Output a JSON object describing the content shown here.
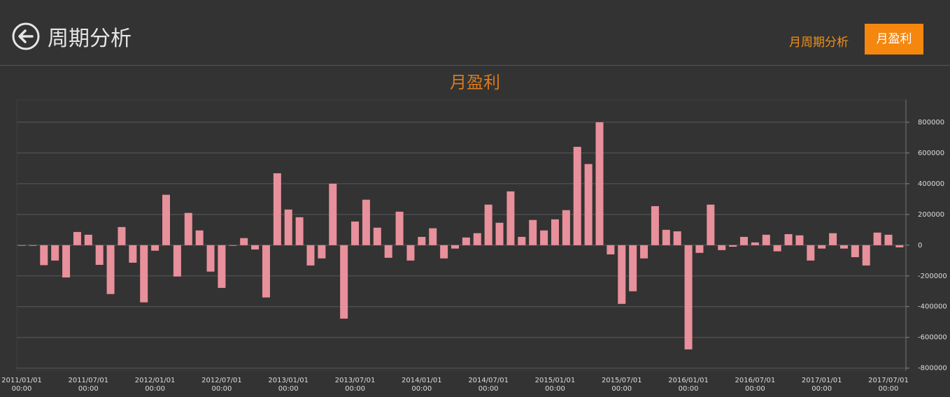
{
  "header": {
    "title": "周期分析",
    "tabs": [
      "月周期分析",
      "月盈利"
    ]
  },
  "chart_data": {
    "type": "bar",
    "title": "月盈利",
    "color": "#e8909b",
    "grid": true,
    "categories": [
      "2011/01/01\n00:00",
      null,
      null,
      null,
      null,
      null,
      "2011/07/01\n00:00",
      null,
      null,
      null,
      null,
      null,
      "2012/01/01\n00:00",
      null,
      null,
      null,
      null,
      null,
      "2012/07/01\n00:00",
      null,
      null,
      null,
      null,
      null,
      "2013/01/01\n00:00",
      null,
      null,
      null,
      null,
      null,
      "2013/07/01\n00:00",
      null,
      null,
      null,
      null,
      null,
      "2014/01/01\n00:00",
      null,
      null,
      null,
      null,
      null,
      "2014/07/01\n00:00",
      null,
      null,
      null,
      null,
      null,
      "2015/01/01\n00:00",
      null,
      null,
      null,
      null,
      null,
      "2015/07/01\n00:00",
      null,
      null,
      null,
      null,
      null,
      "2016/01/01\n00:00",
      null,
      null,
      null,
      null,
      null,
      "2016/07/01\n00:00",
      null,
      null,
      null,
      null,
      null,
      "2017/01/01\n00:00",
      null,
      null,
      null,
      null,
      null,
      "2017/07/01\n00:00",
      null
    ],
    "values": [
      -2000,
      -4000,
      -130000,
      -100000,
      -210000,
      86000,
      68000,
      -128000,
      -318000,
      118000,
      -114000,
      -372000,
      -36000,
      328000,
      -204000,
      210000,
      96000,
      -172000,
      -278000,
      -4000,
      46000,
      -28000,
      -340000,
      468000,
      232000,
      182000,
      -132000,
      -86000,
      400000,
      -478000,
      154000,
      296000,
      114000,
      -82000,
      218000,
      -100000,
      54000,
      110000,
      -86000,
      -22000,
      50000,
      78000,
      264000,
      146000,
      350000,
      54000,
      164000,
      96000,
      168000,
      228000,
      640000,
      528000,
      800000,
      -60000,
      -382000,
      -300000,
      -86000,
      254000,
      100000,
      90000,
      -678000,
      -50000,
      264000,
      -32000,
      -10000,
      54000,
      18000,
      68000,
      -40000,
      72000,
      64000,
      -100000,
      -22000,
      78000,
      -22000,
      -78000,
      -132000,
      82000,
      68000,
      -14000
    ],
    "ylim": [
      -815000,
      945000
    ],
    "yticks": [
      -800000,
      -600000,
      -400000,
      -200000,
      0,
      200000,
      400000,
      600000,
      800000
    ]
  }
}
